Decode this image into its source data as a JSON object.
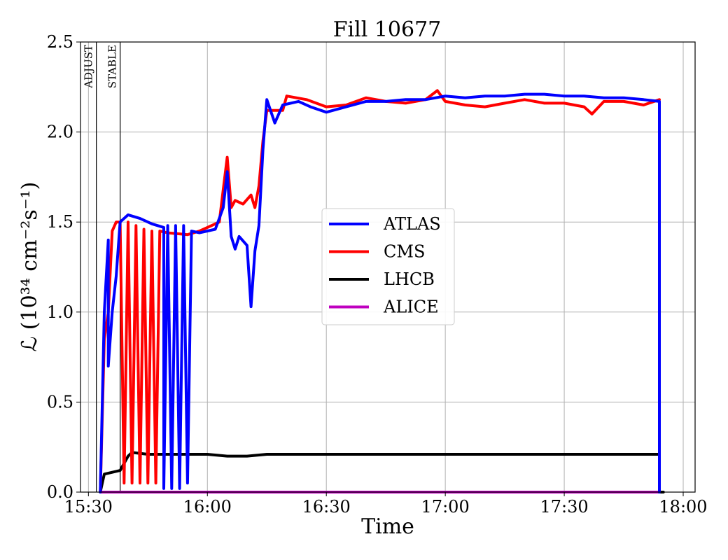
{
  "chart_data": {
    "type": "line",
    "title": "Fill 10677",
    "xlabel": "Time",
    "ylabel": "ℒ (10³⁴ cm⁻²s⁻¹)",
    "ylim": [
      0.0,
      2.5
    ],
    "xlim": [
      "15:28",
      "18:03"
    ],
    "x_ticks": [
      "15:30",
      "16:00",
      "16:30",
      "17:00",
      "17:30",
      "18:00"
    ],
    "y_ticks": [
      "0.0",
      "0.5",
      "1.0",
      "1.5",
      "2.0",
      "2.5"
    ],
    "grid": true,
    "legend_position": "center",
    "phases": [
      {
        "name": "ADJUST",
        "time": "15:32"
      },
      {
        "name": "STABLE",
        "time": "15:38"
      }
    ],
    "series": [
      {
        "name": "ATLAS",
        "color": "#0000ff",
        "points": [
          [
            "15:33",
            0.0
          ],
          [
            "15:34",
            1.0
          ],
          [
            "15:35",
            1.4
          ],
          [
            "15:35",
            0.7
          ],
          [
            "15:36",
            1.0
          ],
          [
            "15:37",
            1.2
          ],
          [
            "15:38",
            1.5
          ],
          [
            "15:40",
            1.54
          ],
          [
            "15:43",
            1.52
          ],
          [
            "15:46",
            1.49
          ],
          [
            "15:49",
            1.47
          ],
          [
            "15:49",
            0.02
          ],
          [
            "15:50",
            1.48
          ],
          [
            "15:51",
            0.02
          ],
          [
            "15:52",
            1.48
          ],
          [
            "15:53",
            0.02
          ],
          [
            "15:54",
            1.48
          ],
          [
            "15:55",
            0.05
          ],
          [
            "15:56",
            1.45
          ],
          [
            "15:58",
            1.44
          ],
          [
            "16:02",
            1.46
          ],
          [
            "16:04",
            1.58
          ],
          [
            "16:05",
            1.78
          ],
          [
            "16:06",
            1.42
          ],
          [
            "16:07",
            1.35
          ],
          [
            "16:08",
            1.42
          ],
          [
            "16:10",
            1.37
          ],
          [
            "16:11",
            1.03
          ],
          [
            "16:12",
            1.34
          ],
          [
            "16:13",
            1.48
          ],
          [
            "16:14",
            1.9
          ],
          [
            "16:15",
            2.18
          ],
          [
            "16:17",
            2.05
          ],
          [
            "16:19",
            2.15
          ],
          [
            "16:23",
            2.17
          ],
          [
            "16:26",
            2.14
          ],
          [
            "16:30",
            2.11
          ],
          [
            "16:35",
            2.14
          ],
          [
            "16:40",
            2.17
          ],
          [
            "16:45",
            2.17
          ],
          [
            "16:50",
            2.18
          ],
          [
            "16:55",
            2.18
          ],
          [
            "17:00",
            2.2
          ],
          [
            "17:05",
            2.19
          ],
          [
            "17:10",
            2.2
          ],
          [
            "17:15",
            2.2
          ],
          [
            "17:20",
            2.21
          ],
          [
            "17:25",
            2.21
          ],
          [
            "17:30",
            2.2
          ],
          [
            "17:35",
            2.2
          ],
          [
            "17:40",
            2.19
          ],
          [
            "17:45",
            2.19
          ],
          [
            "17:50",
            2.18
          ],
          [
            "17:54",
            2.17
          ],
          [
            "17:54",
            0.0
          ]
        ]
      },
      {
        "name": "CMS",
        "color": "#ff0000",
        "points": [
          [
            "15:33",
            0.0
          ],
          [
            "15:34",
            0.85
          ],
          [
            "15:35",
            1.0
          ],
          [
            "15:36",
            1.45
          ],
          [
            "15:37",
            1.5
          ],
          [
            "15:38",
            1.5
          ],
          [
            "15:39",
            0.05
          ],
          [
            "15:40",
            1.5
          ],
          [
            "15:41",
            0.05
          ],
          [
            "15:42",
            1.48
          ],
          [
            "15:43",
            0.05
          ],
          [
            "15:44",
            1.46
          ],
          [
            "15:45",
            0.05
          ],
          [
            "15:46",
            1.45
          ],
          [
            "15:47",
            0.05
          ],
          [
            "15:48",
            1.45
          ],
          [
            "15:50",
            1.44
          ],
          [
            "15:55",
            1.43
          ],
          [
            "15:58",
            1.45
          ],
          [
            "16:00",
            1.47
          ],
          [
            "16:03",
            1.5
          ],
          [
            "16:04",
            1.68
          ],
          [
            "16:05",
            1.86
          ],
          [
            "16:06",
            1.58
          ],
          [
            "16:07",
            1.62
          ],
          [
            "16:09",
            1.6
          ],
          [
            "16:11",
            1.65
          ],
          [
            "16:12",
            1.58
          ],
          [
            "16:13",
            1.7
          ],
          [
            "16:14",
            1.95
          ],
          [
            "16:15",
            2.12
          ],
          [
            "16:19",
            2.12
          ],
          [
            "16:20",
            2.2
          ],
          [
            "16:25",
            2.18
          ],
          [
            "16:30",
            2.14
          ],
          [
            "16:35",
            2.15
          ],
          [
            "16:40",
            2.19
          ],
          [
            "16:45",
            2.17
          ],
          [
            "16:50",
            2.16
          ],
          [
            "16:55",
            2.18
          ],
          [
            "16:58",
            2.23
          ],
          [
            "17:00",
            2.17
          ],
          [
            "17:05",
            2.15
          ],
          [
            "17:10",
            2.14
          ],
          [
            "17:15",
            2.16
          ],
          [
            "17:20",
            2.18
          ],
          [
            "17:25",
            2.16
          ],
          [
            "17:30",
            2.16
          ],
          [
            "17:35",
            2.14
          ],
          [
            "17:37",
            2.1
          ],
          [
            "17:40",
            2.17
          ],
          [
            "17:45",
            2.17
          ],
          [
            "17:50",
            2.15
          ],
          [
            "17:54",
            2.18
          ]
        ]
      },
      {
        "name": "LHCB",
        "color": "#000000",
        "points": [
          [
            "15:33",
            0.0
          ],
          [
            "15:34",
            0.1
          ],
          [
            "15:36",
            0.11
          ],
          [
            "15:38",
            0.12
          ],
          [
            "15:40",
            0.2
          ],
          [
            "15:41",
            0.22
          ],
          [
            "15:45",
            0.21
          ],
          [
            "15:50",
            0.21
          ],
          [
            "15:55",
            0.21
          ],
          [
            "16:00",
            0.21
          ],
          [
            "16:05",
            0.2
          ],
          [
            "16:10",
            0.2
          ],
          [
            "16:15",
            0.21
          ],
          [
            "16:20",
            0.21
          ],
          [
            "16:30",
            0.21
          ],
          [
            "16:40",
            0.21
          ],
          [
            "16:50",
            0.21
          ],
          [
            "17:00",
            0.21
          ],
          [
            "17:10",
            0.21
          ],
          [
            "17:20",
            0.21
          ],
          [
            "17:30",
            0.21
          ],
          [
            "17:40",
            0.21
          ],
          [
            "17:50",
            0.21
          ],
          [
            "17:54",
            0.21
          ],
          [
            "17:54",
            0.0
          ],
          [
            "17:55",
            0.0
          ]
        ]
      },
      {
        "name": "ALICE",
        "color": "#bf00bf",
        "points": [
          [
            "15:33",
            0.0
          ],
          [
            "17:54",
            0.0
          ]
        ]
      }
    ]
  }
}
